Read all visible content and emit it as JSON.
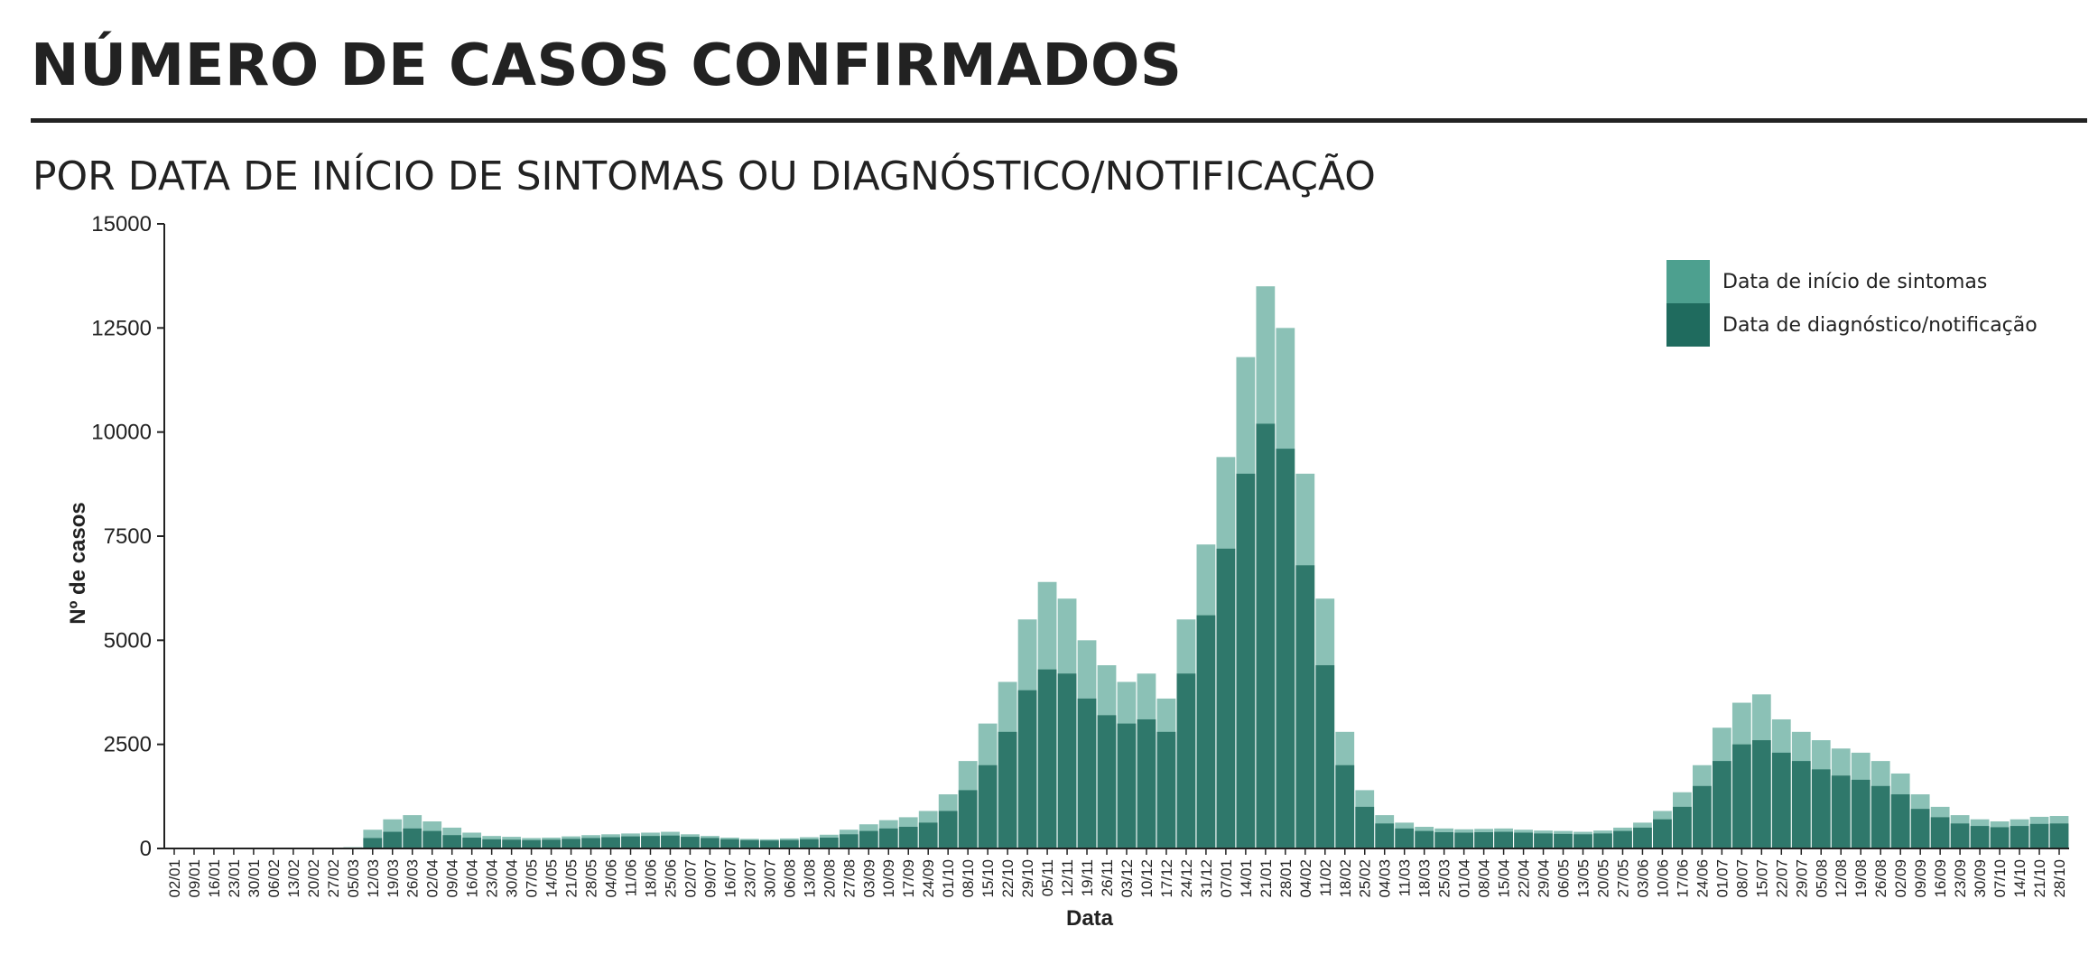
{
  "header": {
    "title": "NÚMERO DE CASOS CONFIRMADOS",
    "subtitle": "POR DATA DE INÍCIO DE SINTOMAS OU DIAGNÓSTICO/NOTIFICAÇÃO"
  },
  "colors": {
    "sintomas": "#4da08f",
    "diagnostico": "#1f6b5e",
    "axis": "#222222"
  },
  "chart_data": {
    "type": "bar",
    "xlabel": "Data",
    "ylabel": "Nº de casos",
    "ylim": [
      0,
      15000
    ],
    "yticks": [
      0,
      2500,
      5000,
      7500,
      10000,
      12500,
      15000
    ],
    "grid": false,
    "legend_position": "top-right",
    "date_ticks": [
      "02/01",
      "09/01",
      "16/01",
      "23/01",
      "30/01",
      "06/02",
      "13/02",
      "20/02",
      "27/02",
      "05/03",
      "12/03",
      "19/03",
      "26/03",
      "02/04",
      "09/04",
      "16/04",
      "23/04",
      "30/04",
      "07/05",
      "14/05",
      "21/05",
      "28/05",
      "04/06",
      "11/06",
      "18/06",
      "25/06",
      "02/07",
      "09/07",
      "16/07",
      "23/07",
      "30/07",
      "06/08",
      "13/08",
      "20/08",
      "27/08",
      "03/09",
      "10/09",
      "17/09",
      "24/09",
      "01/10",
      "08/10",
      "15/10",
      "22/10",
      "29/10",
      "05/11",
      "12/11",
      "19/11",
      "26/11",
      "03/12",
      "10/12",
      "17/12",
      "24/12",
      "31/12",
      "07/01",
      "14/01",
      "21/01",
      "28/01",
      "04/02",
      "11/02",
      "18/02",
      "25/02",
      "04/03",
      "11/03",
      "18/03",
      "25/03",
      "01/04",
      "08/04",
      "15/04",
      "22/04",
      "29/04",
      "06/05",
      "13/05",
      "20/05",
      "27/05",
      "03/06",
      "10/06",
      "17/06",
      "24/06",
      "01/07",
      "08/07",
      "15/07",
      "22/07",
      "29/07",
      "05/08",
      "12/08",
      "19/08",
      "26/08",
      "02/09",
      "09/09",
      "16/09",
      "23/09",
      "30/09",
      "07/10",
      "14/10",
      "21/10",
      "28/10"
    ],
    "series": [
      {
        "name": "Data de início de sintomas",
        "values": [
          0,
          0,
          0,
          0,
          0,
          0,
          0,
          0,
          0,
          30,
          450,
          700,
          800,
          650,
          500,
          380,
          300,
          280,
          250,
          260,
          290,
          320,
          340,
          360,
          380,
          400,
          340,
          300,
          260,
          230,
          220,
          240,
          270,
          330,
          450,
          580,
          680,
          750,
          900,
          1300,
          2100,
          3000,
          4000,
          5500,
          6400,
          6000,
          5000,
          4400,
          4000,
          4200,
          3600,
          5500,
          7300,
          9400,
          11800,
          13500,
          12500,
          9000,
          6000,
          2800,
          1400,
          800,
          620,
          520,
          480,
          460,
          470,
          480,
          450,
          430,
          420,
          400,
          430,
          500,
          620,
          900,
          1350,
          2000,
          2900,
          3500,
          3700,
          3100,
          2800,
          2600,
          2400,
          2300,
          2100,
          1800,
          1300,
          1000,
          800,
          700,
          650,
          700,
          760,
          780
        ]
      },
      {
        "name": "Data de diagnóstico/notificação",
        "values": [
          0,
          0,
          0,
          0,
          0,
          0,
          0,
          0,
          0,
          15,
          250,
          400,
          480,
          420,
          320,
          260,
          220,
          210,
          200,
          210,
          230,
          250,
          270,
          290,
          300,
          310,
          280,
          250,
          220,
          200,
          190,
          200,
          220,
          260,
          340,
          420,
          480,
          520,
          620,
          900,
          1400,
          2000,
          2800,
          3800,
          4300,
          4200,
          3600,
          3200,
          3000,
          3100,
          2800,
          4200,
          5600,
          7200,
          9000,
          10200,
          9600,
          6800,
          4400,
          2000,
          1000,
          600,
          480,
          420,
          390,
          380,
          390,
          400,
          380,
          360,
          350,
          340,
          360,
          420,
          500,
          700,
          1000,
          1500,
          2100,
          2500,
          2600,
          2300,
          2100,
          1900,
          1750,
          1650,
          1500,
          1300,
          950,
          750,
          600,
          540,
          510,
          540,
          590,
          600
        ]
      }
    ]
  }
}
